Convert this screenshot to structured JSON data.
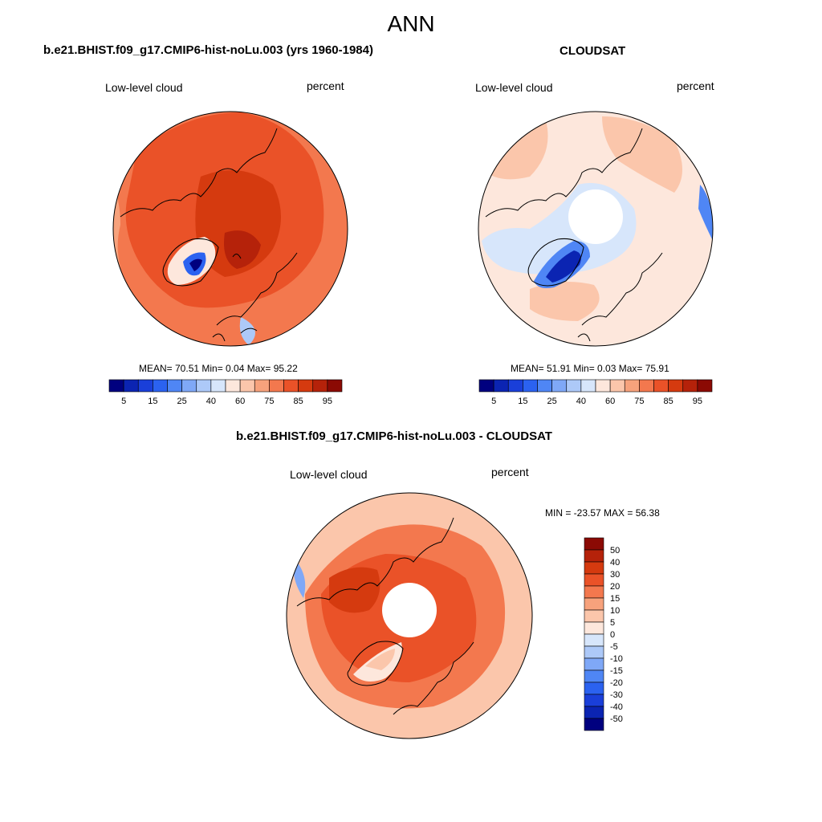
{
  "main_title": "ANN",
  "panel1": {
    "title": "b.e21.BHIST.f09_g17.CMIP6-hist-noLu.003 (yrs 1960-1984)",
    "left_label": "Low-level cloud",
    "right_label": "percent",
    "stats": "MEAN=  70.51  Min=   0.04  Max=  95.22",
    "colorbar": {
      "colors": [
        "#00007f",
        "#0b24b2",
        "#1a3fd9",
        "#2b62f0",
        "#4f86f5",
        "#7fa8f7",
        "#adc9f8",
        "#d7e6fb",
        "#fde7dc",
        "#fbc6ab",
        "#f7a27c",
        "#f3784e",
        "#ea5228",
        "#d53a0f",
        "#b5220a",
        "#8b0a04"
      ],
      "tick_labels": [
        "5",
        "15",
        "25",
        "40",
        "60",
        "75",
        "85",
        "95"
      ]
    }
  },
  "panel2": {
    "title": "CLOUDSAT",
    "left_label": "Low-level cloud",
    "right_label": "percent",
    "stats": "MEAN=  51.91  Min=   0.03  Max=  75.91",
    "colorbar": {
      "colors": [
        "#00007f",
        "#0b24b2",
        "#1a3fd9",
        "#2b62f0",
        "#4f86f5",
        "#7fa8f7",
        "#adc9f8",
        "#d7e6fb",
        "#fde7dc",
        "#fbc6ab",
        "#f7a27c",
        "#f3784e",
        "#ea5228",
        "#d53a0f",
        "#b5220a",
        "#8b0a04"
      ],
      "tick_labels": [
        "5",
        "15",
        "25",
        "40",
        "60",
        "75",
        "85",
        "95"
      ]
    }
  },
  "panel3": {
    "title": "b.e21.BHIST.f09_g17.CMIP6-hist-noLu.003 - CLOUDSAT",
    "left_label": "Low-level cloud",
    "right_label": "percent",
    "stats": "MIN = -23.57 MAX =  56.38",
    "colorbar": {
      "colors": [
        "#8b0a04",
        "#b5220a",
        "#d53a0f",
        "#ea5228",
        "#f3784e",
        "#f7a27c",
        "#fbc6ab",
        "#fde7dc",
        "#d7e6fb",
        "#adc9f8",
        "#7fa8f7",
        "#4f86f5",
        "#2b62f0",
        "#1a3fd9",
        "#0b24b2",
        "#00007f"
      ],
      "tick_labels": [
        "50",
        "40",
        "30",
        "20",
        "15",
        "10",
        "5",
        "0",
        "-5",
        "-10",
        "-15",
        "-20",
        "-30",
        "-40",
        "-50"
      ]
    }
  }
}
